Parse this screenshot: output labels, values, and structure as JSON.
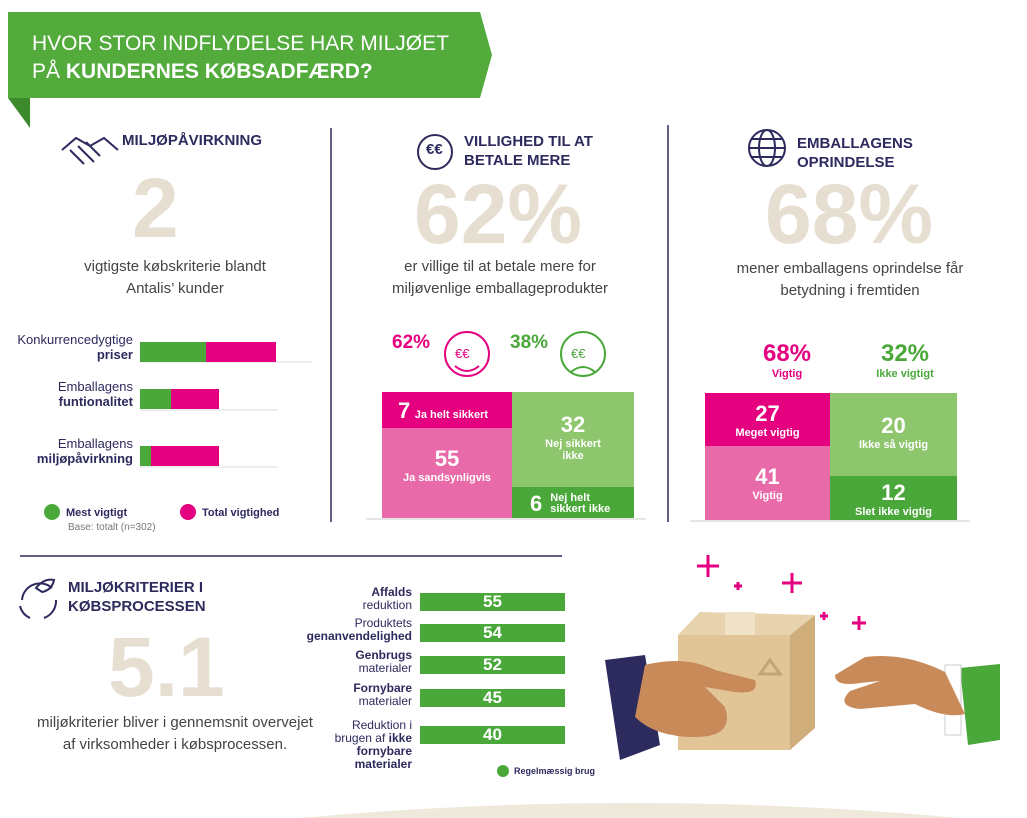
{
  "header": {
    "title_line1": "HVOR STOR INDFLYDELSE HAR MILJØET",
    "title_line2_a": "PÅ",
    "title_line2_b": "KUNDERNES KØBSADFÆRD?"
  },
  "impact": {
    "title": "MILJØPÅVIRKNING",
    "big": "2",
    "text_lines": [
      "vigtigste købskriterie blandt",
      "Antalis’ kunder"
    ],
    "bars": [
      {
        "line1": "Konkurrencedygtige",
        "line2": "priser",
        "most": 30,
        "total": 62
      },
      {
        "line1": "Emballagens",
        "line2": "funtionalitet",
        "most": 14,
        "total": 36
      },
      {
        "line1": "Emballagens",
        "line2": "miljøpåvirkning",
        "most": 5,
        "total": 36
      }
    ],
    "legend": [
      "Mest vigtigt",
      "Total vigtighed"
    ],
    "colors": [
      "#4aa83a",
      "#e4007f"
    ],
    "base": "Base: totalt (n=302)"
  },
  "pay": {
    "title_lines": [
      "VILLIGHED TIL AT",
      "BETALE MERE"
    ],
    "big": "62%",
    "text_lines": [
      "er villige til at betale mere for",
      "miljøvenlige emballageprodukter"
    ],
    "happy": "62%",
    "sad": "38%",
    "icon": "€€",
    "boxes": [
      {
        "num": "7",
        "text": "Ja helt sikkert"
      },
      {
        "num": "55",
        "text": "Ja sandsynligvis"
      },
      {
        "num": "32",
        "text": "Nej sikkert ikke"
      },
      {
        "num": "6",
        "text": "Nej helt sikkert ikke"
      }
    ]
  },
  "origin": {
    "title_lines": [
      "EMBALLAGENS",
      "OPRINDELSE"
    ],
    "big": "68%",
    "text_lines": [
      "mener emballagens oprindelse får",
      "betydning i fremtiden"
    ],
    "left": {
      "pct": "68%",
      "label": "Vigtig"
    },
    "right": {
      "pct": "32%",
      "label": "Ikke vigtigt"
    },
    "boxes": [
      {
        "num": "27",
        "text": "Meget vigtig"
      },
      {
        "num": "41",
        "text": "Vigtig"
      },
      {
        "num": "20",
        "text": "Ikke så vigtig"
      },
      {
        "num": "12",
        "text": "Slet ikke vigtig"
      }
    ]
  },
  "criteria": {
    "title_lines": [
      "MILJØKRITERIER I",
      "KØBSPROCESSEN"
    ],
    "big": "5.1",
    "text_lines": [
      "miljøkriterier bliver i gennemsnit overvejet",
      "af virksomheder i købsprocessen."
    ],
    "rows": [
      {
        "lines": [
          "Affalds",
          "reduktion"
        ],
        "value": "55"
      },
      {
        "lines": [
          "Produktets",
          "genanvendelighed"
        ],
        "value": "54"
      },
      {
        "lines": [
          "Genbrugs",
          "materialer"
        ],
        "value": "52"
      },
      {
        "lines": [
          "Fornybare",
          "materialer"
        ],
        "value": "45"
      },
      {
        "lines": [
          "Reduktion i",
          "brugen af",
          "ikke",
          "fornybare",
          "materialer"
        ],
        "value": "40"
      }
    ],
    "legend": "Regelmæssig brug"
  }
}
